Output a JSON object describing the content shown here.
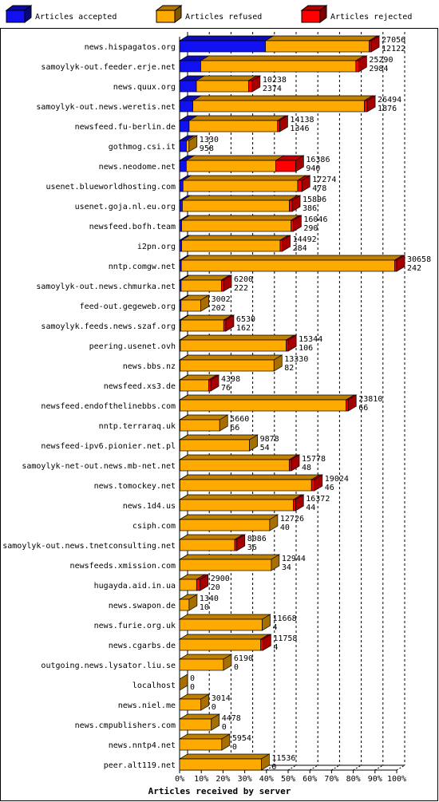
{
  "chart_data": {
    "type": "bar3d-stacked-horizontal",
    "xlabel": "Articles received by server",
    "categories": [
      "news.hispagatos.org",
      "samoylyk-out.feeder.erje.net",
      "news.quux.org",
      "samoylyk-out.news.weretis.net",
      "newsfeed.fu-berlin.de",
      "gothmog.csi.it",
      "news.neodome.net",
      "usenet.blueworldhosting.com",
      "usenet.goja.nl.eu.org",
      "newsfeed.bofh.team",
      "i2pn.org",
      "nntp.comgw.net",
      "samoylyk-out.news.chmurka.net",
      "feed-out.gegeweb.org",
      "samoylyk.feeds.news.szaf.org",
      "peering.usenet.ovh",
      "news.bbs.nz",
      "newsfeed.xs3.de",
      "newsfeed.endofthelinebbs.com",
      "nntp.terraraq.uk",
      "newsfeed-ipv6.pionier.net.pl",
      "samoylyk-net-out.news.mb-net.net",
      "news.tomockey.net",
      "news.1d4.us",
      "csiph.com",
      "samoylyk-out.news.tnetconsulting.net",
      "newsfeeds.xmission.com",
      "hugayda.aid.in.ua",
      "news.swapon.de",
      "news.furie.org.uk",
      "news.cgarbs.de",
      "outgoing.news.lysator.liu.se",
      "localhost",
      "news.niel.me",
      "news.cmpublishers.com",
      "news.nntp4.net",
      "peer.alt119.net"
    ],
    "totals": [
      27056,
      25290,
      10238,
      26494,
      14138,
      1330,
      16386,
      17274,
      15896,
      16046,
      14492,
      30658,
      6200,
      3002,
      6530,
      15344,
      13330,
      4398,
      23810,
      5660,
      9878,
      15778,
      19024,
      16372,
      12726,
      8086,
      12944,
      2900,
      1340,
      11668,
      11758,
      6190,
      0,
      3014,
      4478,
      5954,
      11536
    ],
    "series": [
      {
        "name": "Articles accepted",
        "color": "#1010f0",
        "values": [
          12122,
          2984,
          2374,
          1876,
          1346,
          958,
          940,
          478,
          386,
          290,
          284,
          242,
          222,
          202,
          162,
          106,
          82,
          76,
          66,
          66,
          54,
          48,
          46,
          44,
          40,
          36,
          34,
          20,
          10,
          4,
          4,
          0,
          0,
          0,
          0,
          0,
          0
        ]
      },
      {
        "name": "Articles refused",
        "color": "#ffaa00",
        "values": [
          14634,
          21906,
          7364,
          24218,
          12492,
          372,
          12646,
          16196,
          15110,
          15456,
          13908,
          30116,
          5678,
          2800,
          6068,
          14938,
          13248,
          4022,
          23444,
          5594,
          9824,
          15430,
          18578,
          16028,
          12686,
          7750,
          12910,
          2380,
          1330,
          11664,
          11454,
          6190,
          0,
          3014,
          4478,
          5954,
          11536
        ]
      },
      {
        "name": "Articles rejected",
        "color": "#ff0000",
        "values": [
          300,
          400,
          500,
          400,
          300,
          0,
          2800,
          600,
          400,
          300,
          300,
          300,
          300,
          0,
          300,
          300,
          0,
          300,
          300,
          0,
          0,
          300,
          400,
          300,
          0,
          300,
          0,
          500,
          0,
          0,
          300,
          0,
          0,
          0,
          0,
          0,
          0
        ]
      }
    ],
    "xlim": [
      0,
      30658
    ],
    "xticks": [
      {
        "value": 0,
        "label": "0%"
      },
      {
        "value": 3065.8,
        "label": "10%"
      },
      {
        "value": 6131.6,
        "label": "20%"
      },
      {
        "value": 9197.4,
        "label": "30%"
      },
      {
        "value": 12263.2,
        "label": "40%"
      },
      {
        "value": 15329,
        "label": "50%"
      },
      {
        "value": 18394.8,
        "label": "60%"
      },
      {
        "value": 21460.6,
        "label": "70%"
      },
      {
        "value": 24526.4,
        "label": "80%"
      },
      {
        "value": 27592.2,
        "label": "90%"
      },
      {
        "value": 30658,
        "label": "100%"
      }
    ],
    "grid": true
  }
}
